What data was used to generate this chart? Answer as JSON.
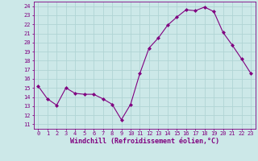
{
  "x": [
    0,
    1,
    2,
    3,
    4,
    5,
    6,
    7,
    8,
    9,
    10,
    11,
    12,
    13,
    14,
    15,
    16,
    17,
    18,
    19,
    20,
    21,
    22,
    23
  ],
  "y": [
    15.2,
    13.8,
    13.1,
    15.0,
    14.4,
    14.3,
    14.3,
    13.8,
    13.2,
    11.5,
    13.2,
    16.6,
    19.4,
    20.5,
    21.9,
    22.8,
    23.6,
    23.5,
    23.9,
    23.4,
    21.1,
    19.7,
    18.2,
    16.6
  ],
  "line_color": "#800080",
  "marker": "D",
  "marker_size": 2,
  "bg_color": "#cce8e8",
  "grid_color": "#b0d4d4",
  "xlabel": "Windchill (Refroidissement éolien,°C)",
  "xlabel_color": "#800080",
  "tick_color": "#800080",
  "ylabel_ticks": [
    11,
    12,
    13,
    14,
    15,
    16,
    17,
    18,
    19,
    20,
    21,
    22,
    23,
    24
  ],
  "ylim": [
    10.5,
    24.5
  ],
  "xlim": [
    -0.5,
    23.5
  ],
  "tick_fontsize": 5.0,
  "xlabel_fontsize": 6.0
}
